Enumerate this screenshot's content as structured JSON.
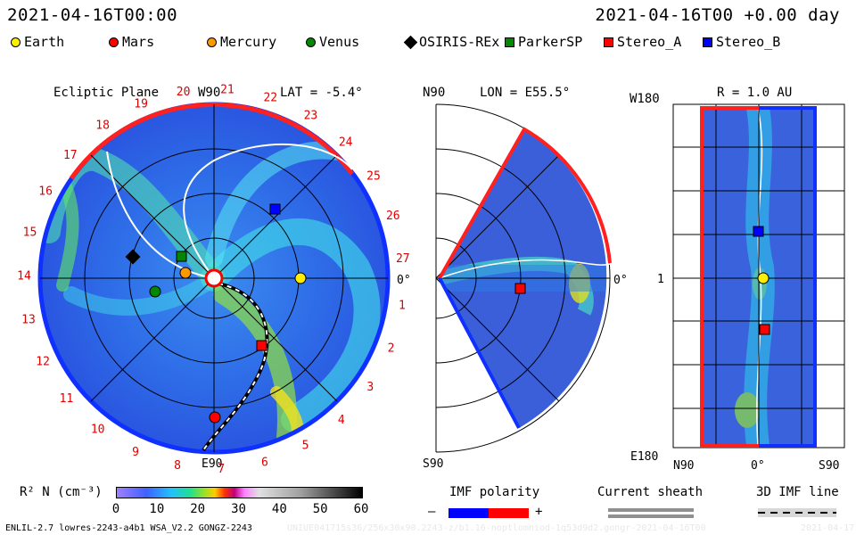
{
  "header": {
    "date_left": "2021-04-16T00:00",
    "date_right": "2021-04-16T00 +0.00 day"
  },
  "legend": [
    {
      "label": "Earth",
      "shape": "circle",
      "color": "#ffee00"
    },
    {
      "label": "Mars",
      "shape": "circle",
      "color": "#ff0000"
    },
    {
      "label": "Mercury",
      "shape": "circle",
      "color": "#ff9900"
    },
    {
      "label": "Venus",
      "shape": "circle",
      "color": "#008800"
    },
    {
      "label": "OSIRIS-REx",
      "shape": "diamond",
      "color": "#000000"
    },
    {
      "label": "ParkerSP",
      "shape": "square",
      "color": "#008800"
    },
    {
      "label": "Stereo_A",
      "shape": "square",
      "color": "#ff0000"
    },
    {
      "label": "Stereo_B",
      "shape": "square",
      "color": "#0000ff"
    }
  ],
  "panel1": {
    "title": "Ecliptic Plane",
    "top_label": "W90",
    "lat": "LAT = -5.4°",
    "bottom_label": "E90",
    "right_label": "0°",
    "carrington": [
      "1",
      "2",
      "3",
      "4",
      "5",
      "6",
      "7",
      "8",
      "9",
      "10",
      "11",
      "12",
      "13",
      "14",
      "15",
      "16",
      "17",
      "18",
      "19",
      "20",
      "21",
      "22",
      "23",
      "24",
      "25",
      "26",
      "27"
    ]
  },
  "panel2": {
    "top_label": "N90",
    "lon": "LON = E55.5°",
    "bottom_label": "S90",
    "right_label": "0°"
  },
  "panel3": {
    "top_label": "W180",
    "r": "R = 1.0 AU",
    "mid_label": "1",
    "bottom_left": "E180",
    "x_left": "N90",
    "x_mid": "0°",
    "x_right": "S90"
  },
  "colorbar": {
    "label": "R² N (cm⁻³)",
    "ticks": [
      "0",
      "10",
      "20",
      "30",
      "40",
      "50",
      "60"
    ]
  },
  "keys": {
    "imf_polarity": "IMF polarity",
    "minus": "–",
    "plus": "+",
    "current_sheath": "Current sheath",
    "imf_line": "3D IMF line"
  },
  "footer": {
    "model": "ENLIL-2.7 lowres-2243-a4b1 WSA_V2.2 GONGZ-2243",
    "run_id": "UNIUE041715s36/256x30x90.2243-z/b1.16-noptlomniod-1q53d9d2.gongr-2021-04-16T00",
    "date_tag": "2021-04-17"
  }
}
